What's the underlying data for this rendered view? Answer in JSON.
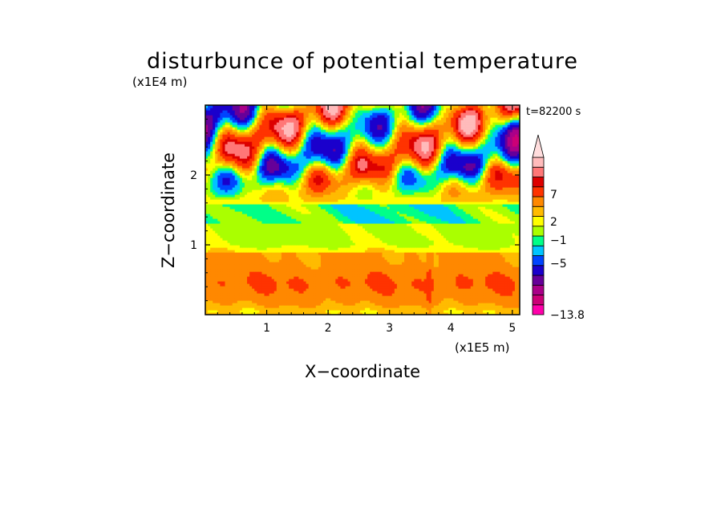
{
  "chart_data": {
    "type": "heatmap",
    "title": "disturbunce of potential temperature",
    "xlabel": "X−coordinate",
    "ylabel": "Z−coordinate",
    "x_unit": "(x1E5 m)",
    "y_unit": "(x1E4 m)",
    "time_label": "t=82200 s",
    "xlim": [
      0,
      5.12
    ],
    "ylim": [
      0,
      3.0
    ],
    "x_ticks": [
      "1",
      "2",
      "3",
      "4",
      "5"
    ],
    "y_ticks": [
      "1",
      "2"
    ],
    "colorbar": {
      "tick_labels": [
        "7",
        "2",
        "−1",
        "−5",
        "−13.8"
      ],
      "colors": [
        "#ff00aa",
        "#cc0077",
        "#aa0088",
        "#660099",
        "#1a00cc",
        "#0044ff",
        "#00c4ff",
        "#00ff88",
        "#aaff00",
        "#ffff00",
        "#ffbb00",
        "#ff8800",
        "#ff3300",
        "#dd0000",
        "#ff7777",
        "#ffbbbb"
      ],
      "extend": "max"
    },
    "pattern": {
      "layers": [
        {
          "z_range": [
            0,
            0.9
          ],
          "description": "positive 2 to 7, yellow-orange"
        },
        {
          "z_range": [
            0.9,
            1.3
          ],
          "description": "near zero, green"
        },
        {
          "z_range": [
            1.3,
            1.6
          ],
          "description": "slightly negative, cyan"
        },
        {
          "z_range": [
            1.6,
            3.0
          ],
          "description": "alternating gravity-wave bands from -5 to 7"
        }
      ]
    }
  }
}
